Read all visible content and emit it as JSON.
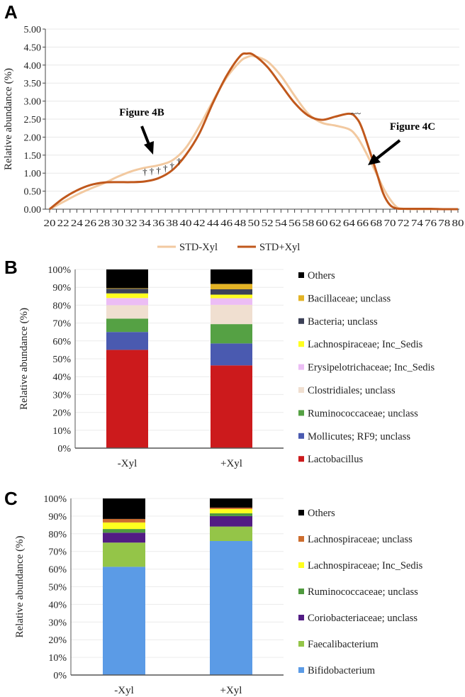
{
  "panels": {
    "a": "A",
    "b": "B",
    "c": "C"
  },
  "chart_data": [
    {
      "type": "line",
      "ylabel": "Relative abundance (%)",
      "xlabel": "",
      "ylim": [
        0,
        5
      ],
      "yticks": [
        "0.00",
        "0.50",
        "1.00",
        "1.50",
        "2.00",
        "2.50",
        "3.00",
        "3.50",
        "4.00",
        "4.50",
        "5.00"
      ],
      "xlim": [
        20,
        80
      ],
      "xticks": [
        20,
        22,
        24,
        26,
        28,
        30,
        32,
        34,
        36,
        38,
        40,
        42,
        44,
        46,
        48,
        50,
        52,
        54,
        56,
        58,
        60,
        62,
        64,
        66,
        68,
        70,
        72,
        74,
        76,
        78,
        80
      ],
      "grid": true,
      "legend_position": "bottom",
      "x": [
        20,
        22,
        24,
        26,
        28,
        30,
        32,
        34,
        36,
        38,
        40,
        42,
        44,
        46,
        48,
        49,
        50,
        52,
        54,
        56,
        58,
        60,
        62,
        64,
        65,
        66,
        68,
        69,
        70,
        71,
        72,
        74,
        76,
        78,
        80
      ],
      "series": [
        {
          "name": "STD-Xyl",
          "color": "#f2c9a0",
          "values": [
            0,
            0.2,
            0.4,
            0.57,
            0.72,
            0.9,
            1.05,
            1.15,
            1.22,
            1.35,
            1.7,
            2.3,
            3.0,
            3.65,
            4.1,
            4.22,
            4.25,
            4.1,
            3.7,
            3.15,
            2.65,
            2.4,
            2.32,
            2.22,
            2.05,
            1.75,
            1.0,
            0.6,
            0.28,
            0.06,
            0.01,
            0,
            0,
            0,
            0
          ]
        },
        {
          "name": "STD+Xyl",
          "color": "#c0581c",
          "values": [
            0,
            0.3,
            0.52,
            0.67,
            0.74,
            0.75,
            0.75,
            0.77,
            0.86,
            1.08,
            1.5,
            2.1,
            2.95,
            3.7,
            4.25,
            4.32,
            4.28,
            3.95,
            3.45,
            2.95,
            2.6,
            2.48,
            2.57,
            2.65,
            2.55,
            2.2,
            1.05,
            0.45,
            0.12,
            0.02,
            0.01,
            0.01,
            0.01,
            0,
            0
          ]
        }
      ],
      "annotations": [
        {
          "text": "Figure 4B",
          "x": 35,
          "y": 1.5
        },
        {
          "text": "Figure 4C",
          "x": 66,
          "y": 2.7
        }
      ],
      "markers": [
        {
          "text": "†",
          "x": 34,
          "y": 0.95
        },
        {
          "text": "†",
          "x": 35,
          "y": 0.97
        },
        {
          "text": "†",
          "x": 36,
          "y": 0.99
        },
        {
          "text": "†",
          "x": 37,
          "y": 1.05
        },
        {
          "text": "†",
          "x": 38,
          "y": 1.12
        },
        {
          "text": "†",
          "x": 39,
          "y": 1.25
        },
        {
          "text": "~~",
          "x": 65,
          "y": 2.58
        }
      ]
    },
    {
      "type": "bar",
      "stacked": true,
      "ylabel": "Relative abundance (%)",
      "ylim": [
        0,
        100
      ],
      "yticks": [
        "0%",
        "10%",
        "20%",
        "30%",
        "40%",
        "50%",
        "60%",
        "70%",
        "80%",
        "90%",
        "100%"
      ],
      "categories": [
        "-Xyl",
        "+Xyl"
      ],
      "legend_position": "right",
      "series": [
        {
          "name": "Lactobacillus",
          "color": "#cc1a1c",
          "values": [
            55.0,
            46.3
          ]
        },
        {
          "name": "Mollicutes; RF9; unclass",
          "color": "#4a5ab0",
          "values": [
            10.0,
            12.3
          ]
        },
        {
          "name": "Ruminococcaceae; unclass",
          "color": "#55a144",
          "values": [
            7.5,
            10.8
          ]
        },
        {
          "name": "Clostridiales; unclass",
          "color": "#f0dfd0",
          "values": [
            7.5,
            10.8
          ]
        },
        {
          "name": "Erysipelotrichaceae; Inc_Sedis",
          "color": "#ecbdf5",
          "values": [
            4.0,
            3.7
          ]
        },
        {
          "name": "Lachnospiraceae; Inc_Sedis",
          "color": "#ffff1f",
          "values": [
            2.6,
            2.0
          ]
        },
        {
          "name": "Bacteria; unclass",
          "color": "#3c4157",
          "values": [
            2.6,
            3.0
          ]
        },
        {
          "name": "Bacillaceae; unclass",
          "color": "#e3b325",
          "values": [
            0.3,
            3.0
          ]
        },
        {
          "name": "Others",
          "color": "#000000",
          "values": [
            10.5,
            8.1
          ]
        }
      ]
    },
    {
      "type": "bar",
      "stacked": true,
      "ylabel": "Relative abundance (%)",
      "ylim": [
        0,
        100
      ],
      "yticks": [
        "0%",
        "10%",
        "20%",
        "30%",
        "40%",
        "50%",
        "60%",
        "70%",
        "80%",
        "90%",
        "100%"
      ],
      "categories": [
        "-Xyl",
        "+Xyl"
      ],
      "legend_position": "right",
      "series": [
        {
          "name": "Bifidobacterium",
          "color": "#5b9be6",
          "values": [
            61.3,
            75.9
          ]
        },
        {
          "name": "Faecalibacterium",
          "color": "#94c548",
          "values": [
            13.7,
            8.2
          ]
        },
        {
          "name": "Coriobacteriaceae; unclass",
          "color": "#521c84",
          "values": [
            5.6,
            5.9
          ]
        },
        {
          "name": "Ruminococcaceae; unclass",
          "color": "#4f9a3e",
          "values": [
            2.1,
            1.6
          ]
        },
        {
          "name": "Lachnospiraceae; Inc_Sedis",
          "color": "#ffff1f",
          "values": [
            3.7,
            2.4
          ]
        },
        {
          "name": "Lachnospiraceae; unclass",
          "color": "#cd6d2e",
          "values": [
            2.0,
            0.8
          ]
        },
        {
          "name": "Others",
          "color": "#000000",
          "values": [
            11.6,
            5.2
          ]
        }
      ]
    }
  ]
}
